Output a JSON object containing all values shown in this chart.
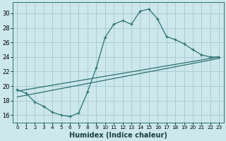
{
  "xlabel": "Humidex (Indice chaleur)",
  "ylabel": "",
  "background_color": "#cce8ec",
  "grid_color": "#aaccd4",
  "line_color": "#2d7070",
  "xlim": [
    -0.5,
    23.5
  ],
  "ylim": [
    15.0,
    31.5
  ],
  "xticks": [
    0,
    1,
    2,
    3,
    4,
    5,
    6,
    7,
    8,
    9,
    10,
    11,
    12,
    13,
    14,
    15,
    16,
    17,
    18,
    19,
    20,
    21,
    22,
    23
  ],
  "yticks": [
    16,
    18,
    20,
    22,
    24,
    26,
    28,
    30
  ],
  "curve1_x": [
    0,
    1,
    2,
    3,
    4,
    5,
    6,
    7,
    8,
    9,
    10,
    11,
    12,
    13,
    14,
    15,
    16,
    17,
    18,
    19,
    20,
    21,
    22,
    23
  ],
  "curve1_y": [
    19.5,
    19.0,
    17.8,
    17.2,
    16.4,
    16.0,
    15.8,
    16.3,
    19.2,
    22.5,
    26.7,
    28.5,
    29.0,
    28.5,
    30.3,
    30.6,
    29.2,
    26.8,
    26.4,
    25.8,
    25.0,
    24.3,
    24.0,
    24.0
  ],
  "line1_x0": 0,
  "line1_x1": 23,
  "line1_y0": 19.3,
  "line1_y1": 24.0,
  "line2_x0": 0,
  "line2_x1": 23,
  "line2_y0": 18.5,
  "line2_y1": 23.8
}
